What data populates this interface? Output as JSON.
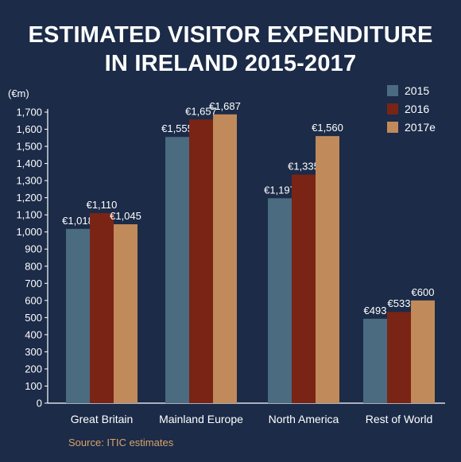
{
  "title_line1": "ESTIMATED VISITOR EXPENDITURE",
  "title_line2": "IN IRELAND 2015-2017",
  "source": "Source: ITIC estimates",
  "colors": {
    "background": "#1b2b48",
    "series": [
      "#4a6b80",
      "#7a2416",
      "#c08a5a"
    ],
    "axis_text": "#ffffff",
    "source_text": "#d9a36b"
  },
  "chart_data": {
    "type": "bar",
    "title": "ESTIMATED VISITOR EXPENDITURE IN IRELAND 2015-2017",
    "ylabel": "(€m)",
    "xlabel": "",
    "ylim": [
      0,
      1700
    ],
    "yticks": [
      0,
      100,
      200,
      300,
      400,
      500,
      600,
      700,
      800,
      900,
      1000,
      1100,
      1200,
      1300,
      1400,
      1500,
      1600,
      1700
    ],
    "ytick_labels": [
      "0",
      "100",
      "200",
      "300",
      "400",
      "500",
      "600",
      "700",
      "800",
      "900",
      "1,000",
      "1,100",
      "1,200",
      "1,300",
      "1,400",
      "1,500",
      "1,600",
      "1,700"
    ],
    "categories": [
      "Great Britain",
      "Mainland Europe",
      "North America",
      "Rest of World"
    ],
    "series": [
      {
        "name": "2015",
        "values": [
          1018,
          1555,
          1197,
          493
        ],
        "labels": [
          "€1,018",
          "€1,555",
          "€1,197",
          "€493"
        ]
      },
      {
        "name": "2016",
        "values": [
          1110,
          1657,
          1335,
          533
        ],
        "labels": [
          "€1,110",
          "€1,657",
          "€1,335",
          "€533"
        ]
      },
      {
        "name": "2017e",
        "values": [
          1045,
          1687,
          1560,
          600
        ],
        "labels": [
          "€1,045",
          "€1,687",
          "€1,560",
          "€600"
        ]
      }
    ],
    "legend_position": "top-right",
    "grid": false
  }
}
